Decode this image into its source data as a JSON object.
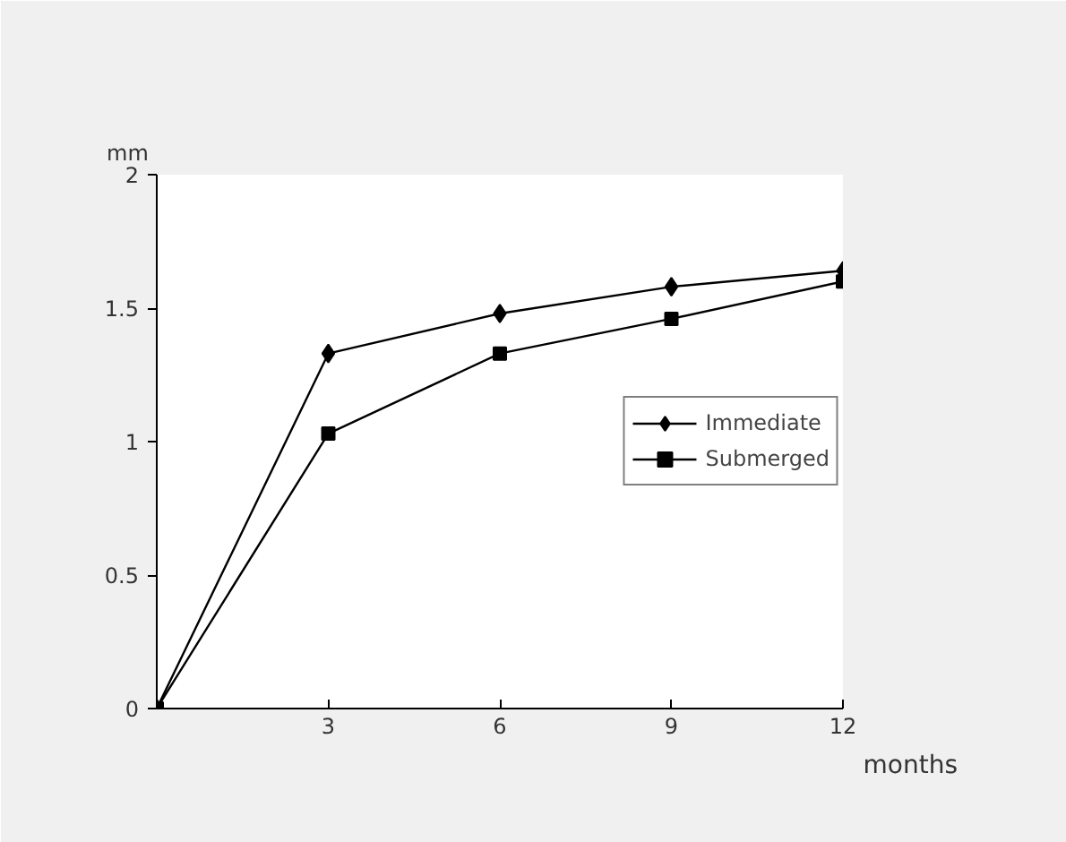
{
  "chart_data": {
    "type": "line",
    "xlabel": "months",
    "ylabel": "mm",
    "x": [
      0,
      3,
      6,
      9,
      12
    ],
    "series": [
      {
        "name": "Immediate",
        "color": "#000000",
        "marker": "diamond",
        "values": [
          0,
          1.33,
          1.48,
          1.58,
          1.64
        ]
      },
      {
        "name": "Submerged",
        "color": "#000000",
        "marker": "square",
        "values": [
          0,
          1.03,
          1.33,
          1.46,
          1.6
        ]
      }
    ],
    "xlim": [
      0,
      12
    ],
    "ylim": [
      0,
      2
    ],
    "xticks": [
      3,
      6,
      9,
      12
    ],
    "yticks": [
      0,
      0.5,
      1,
      1.5,
      2
    ],
    "grid": false,
    "legend": "right",
    "line_style": "solid"
  }
}
